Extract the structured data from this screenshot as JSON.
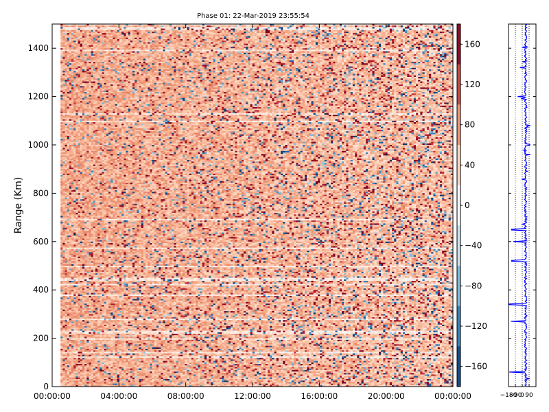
{
  "chart_data": [
    {
      "type": "heatmap",
      "title": "Phase 01: 22-Mar-2019 23:55:54",
      "ylabel": "Range (Km)",
      "xlabel": "",
      "x_tick_labels": [
        "00:00:00",
        "04:00:00",
        "08:00:00",
        "12:00:00",
        "16:00:00",
        "20:00:00",
        "00:00:00"
      ],
      "y_ticks": [
        0,
        200,
        400,
        600,
        800,
        1000,
        1200,
        1400
      ],
      "ylim": [
        0,
        1500
      ],
      "xlim_hours": [
        0,
        24
      ],
      "data_start_hour": 0.5,
      "data_end_hour": 24,
      "colormap": "RdBu_r",
      "colorbar": {
        "ticks": [
          160,
          120,
          80,
          40,
          0,
          -40,
          -80,
          -120,
          -160
        ],
        "range": [
          -180,
          180
        ],
        "low_color": "#053061",
        "high_color": "#67001f"
      },
      "value_distribution": "noisy phase values; mostly light red (+40 to +90 deg), scattered dark red and blue outliers, sparser toward later hours"
    },
    {
      "type": "line",
      "series_color": "#0000ff",
      "x_tick_labels": [
        "−180",
        "−90",
        "0",
        "90"
      ],
      "xlim": [
        -180,
        180
      ],
      "ylim": [
        0,
        1500
      ],
      "grid": "dotted vertical",
      "value_distribution": "phase profile centred near +45 deg with spikes toward −180 near 60, 270, 340, 520 km"
    }
  ]
}
